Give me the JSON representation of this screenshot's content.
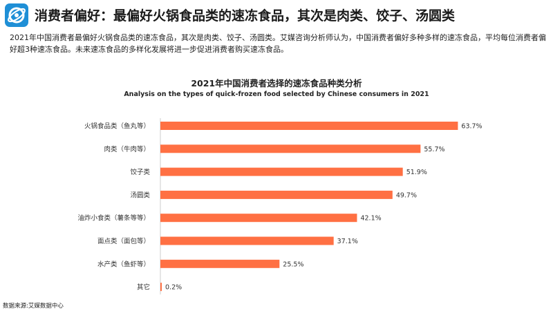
{
  "header": {
    "title": "消费者偏好：最偏好火锅食品类的速冻食品，其次是肉类、饺子、汤圆类",
    "logo_icon": "app-logo-icon",
    "accent_color": "#1f8fd6"
  },
  "intro": "2021年中国消费者最偏好火锅食品类的速冻食品，其次是肉类、饺子、汤圆类。艾媒咨询分析师认为，中国消费者偏好多种多样的速冻食品，平均每位消费者偏好超3种速冻食品。未来速冻食品的多样化发展将进一步促进消费者购买速冻食品。",
  "chart_data": {
    "type": "bar",
    "orientation": "horizontal",
    "title": "2021年中国消费者选择的速冻食品种类分析",
    "subtitle": "Analysis on the types of quick-frozen food selected by Chinese consumers in 2021",
    "categories": [
      "火锅食品类（鱼丸等）",
      "肉类（牛肉等）",
      "饺子类",
      "汤圆类",
      "油炸小食类（薯条等等）",
      "面点类（面包等）",
      "水产类（鱼虾等）",
      "其它"
    ],
    "values": [
      63.7,
      55.7,
      51.9,
      49.7,
      42.1,
      37.1,
      25.5,
      0.2
    ],
    "value_labels": [
      "63.7%",
      "55.7%",
      "51.9%",
      "49.7%",
      "42.1%",
      "37.1%",
      "25.5%",
      "0.2%"
    ],
    "unit": "%",
    "bar_color": "#ff7043",
    "grid": false,
    "legend": "none"
  },
  "source": "数据来源:艾媒数据中心"
}
